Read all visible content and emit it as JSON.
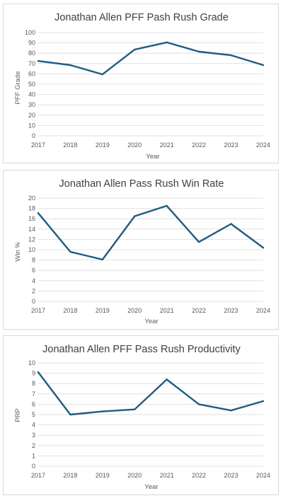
{
  "chart_data": [
    {
      "type": "line",
      "title": "Jonathan Allen PFF Pash Rush Grade",
      "xlabel": "Year",
      "ylabel": "PFF Grade",
      "categories": [
        "2017",
        "2018",
        "2019",
        "2020",
        "2021",
        "2022",
        "2023",
        "2024"
      ],
      "values": [
        72.5,
        68.5,
        59.5,
        83.5,
        90.5,
        81.5,
        78,
        68.5
      ],
      "ylim": [
        0,
        100
      ],
      "yticks": [
        0,
        10,
        20,
        30,
        40,
        50,
        60,
        70,
        80,
        90,
        100
      ],
      "grid": true,
      "legend": "none",
      "color": "#1f5c80"
    },
    {
      "type": "line",
      "title": "Jonathan Allen Pass Rush Win Rate",
      "xlabel": "Year",
      "ylabel": "Win %",
      "categories": [
        "2017",
        "2018",
        "2019",
        "2020",
        "2021",
        "2022",
        "2023",
        "2024"
      ],
      "values": [
        17.1,
        9.6,
        8.1,
        16.5,
        18.5,
        11.5,
        15,
        10.4
      ],
      "ylim": [
        0,
        20
      ],
      "yticks": [
        0,
        2,
        4,
        6,
        8,
        10,
        12,
        14,
        16,
        18,
        20
      ],
      "grid": true,
      "legend": "none",
      "color": "#1f5c80"
    },
    {
      "type": "line",
      "title": "Jonathan Allen PFF Pass Rush Productivity",
      "xlabel": "Year",
      "ylabel": "PRP",
      "categories": [
        "2017",
        "2018",
        "2019",
        "2020",
        "2021",
        "2022",
        "2023",
        "2024"
      ],
      "values": [
        9.1,
        5.0,
        5.3,
        5.5,
        8.4,
        6.0,
        5.4,
        6.3
      ],
      "ylim": [
        0,
        10
      ],
      "yticks": [
        0,
        1,
        2,
        3,
        4,
        5,
        6,
        7,
        8,
        9,
        10
      ],
      "grid": true,
      "legend": "none",
      "color": "#1f5c80"
    }
  ]
}
